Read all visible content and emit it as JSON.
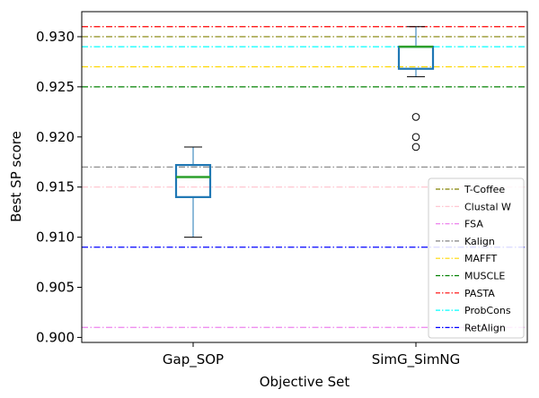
{
  "chart_data": {
    "type": "box",
    "xlabel": "Objective Set",
    "ylabel": "Best SP score",
    "ylim": [
      0.8995,
      0.9325
    ],
    "yticks": [
      "0.900",
      "0.905",
      "0.910",
      "0.915",
      "0.920",
      "0.925",
      "0.930"
    ],
    "categories": [
      "Gap_SOP",
      "SimG_SimNG"
    ],
    "boxes": [
      {
        "category": "Gap_SOP",
        "whisker_low": 0.91,
        "q1": 0.914,
        "median": 0.916,
        "q3": 0.9172,
        "whisker_high": 0.919,
        "outliers": []
      },
      {
        "category": "SimG_SimNG",
        "whisker_low": 0.926,
        "q1": 0.9268,
        "median": 0.929,
        "q3": 0.929,
        "whisker_high": 0.931,
        "outliers": [
          0.922,
          0.92,
          0.919
        ]
      }
    ],
    "reference_lines": [
      {
        "name": "T-Coffee",
        "value": 0.93,
        "color": "#808000"
      },
      {
        "name": "Clustal W",
        "value": 0.915,
        "color": "#ffc0cb"
      },
      {
        "name": "FSA",
        "value": 0.901,
        "color": "#ee82ee"
      },
      {
        "name": "Kalign",
        "value": 0.917,
        "color": "#808080"
      },
      {
        "name": "MAFFT",
        "value": 0.927,
        "color": "#ffd700"
      },
      {
        "name": "MUSCLE",
        "value": 0.925,
        "color": "#008000"
      },
      {
        "name": "PASTA",
        "value": 0.931,
        "color": "#ff0000"
      },
      {
        "name": "ProbCons",
        "value": 0.929,
        "color": "#00ffff"
      },
      {
        "name": "RetAlign",
        "value": 0.909,
        "color": "#0000ff"
      }
    ],
    "legend_position": "lower-right",
    "box_color": "#1f77b4",
    "median_color": "#2ca02c",
    "grid": false
  }
}
